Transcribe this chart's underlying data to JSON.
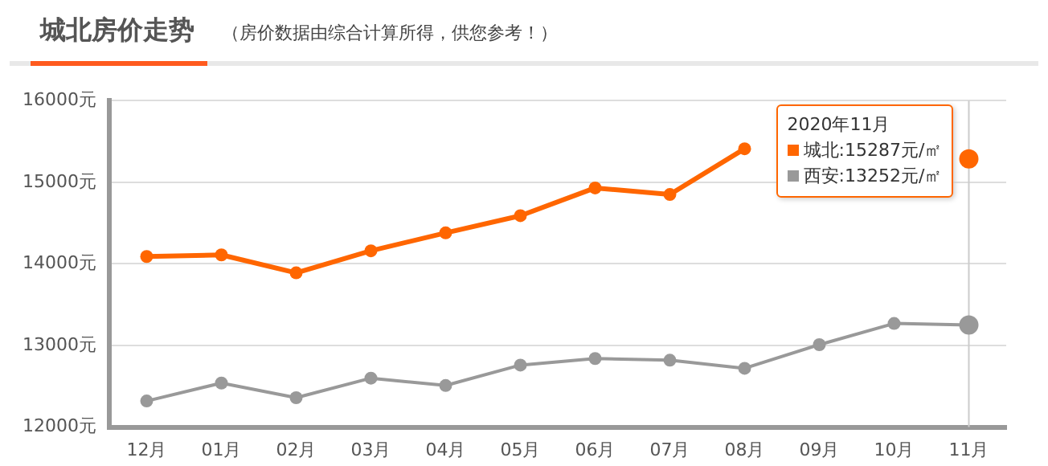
{
  "chart_data": {
    "type": "line",
    "title": "城北房价走势",
    "subtitle": "（房价数据由综合计算所得，供您参考！）",
    "categories": [
      "12月",
      "01月",
      "02月",
      "03月",
      "04月",
      "05月",
      "06月",
      "07月",
      "08月",
      "09月",
      "10月",
      "11月"
    ],
    "series": [
      {
        "name": "城北",
        "color": "#ff6600",
        "values": [
          14090,
          14110,
          13890,
          14160,
          14380,
          14590,
          14930,
          14850,
          15410,
          null,
          null,
          15287
        ]
      },
      {
        "name": "西安",
        "color": "#999999",
        "values": [
          12320,
          12540,
          12360,
          12600,
          12510,
          12760,
          12840,
          12820,
          12720,
          13010,
          13270,
          13252
        ]
      }
    ],
    "ylim": [
      12000,
      16000
    ],
    "yticks": [
      {
        "value": 12000,
        "label": "12000元"
      },
      {
        "value": 13000,
        "label": "13000元"
      },
      {
        "value": 14000,
        "label": "14000元"
      },
      {
        "value": 15000,
        "label": "15000元"
      },
      {
        "value": 16000,
        "label": "16000元"
      }
    ],
    "grid": "y",
    "marker": "circle",
    "line_style": "solid",
    "legend": "top right",
    "annotations": [
      "2020年11月",
      ":15287元/㎡",
      ":13252元/㎡"
    ],
    "ref_lines": [
      {
        "axis": "x",
        "value": "11月",
        "color": "#cccccc"
      }
    ]
  }
}
